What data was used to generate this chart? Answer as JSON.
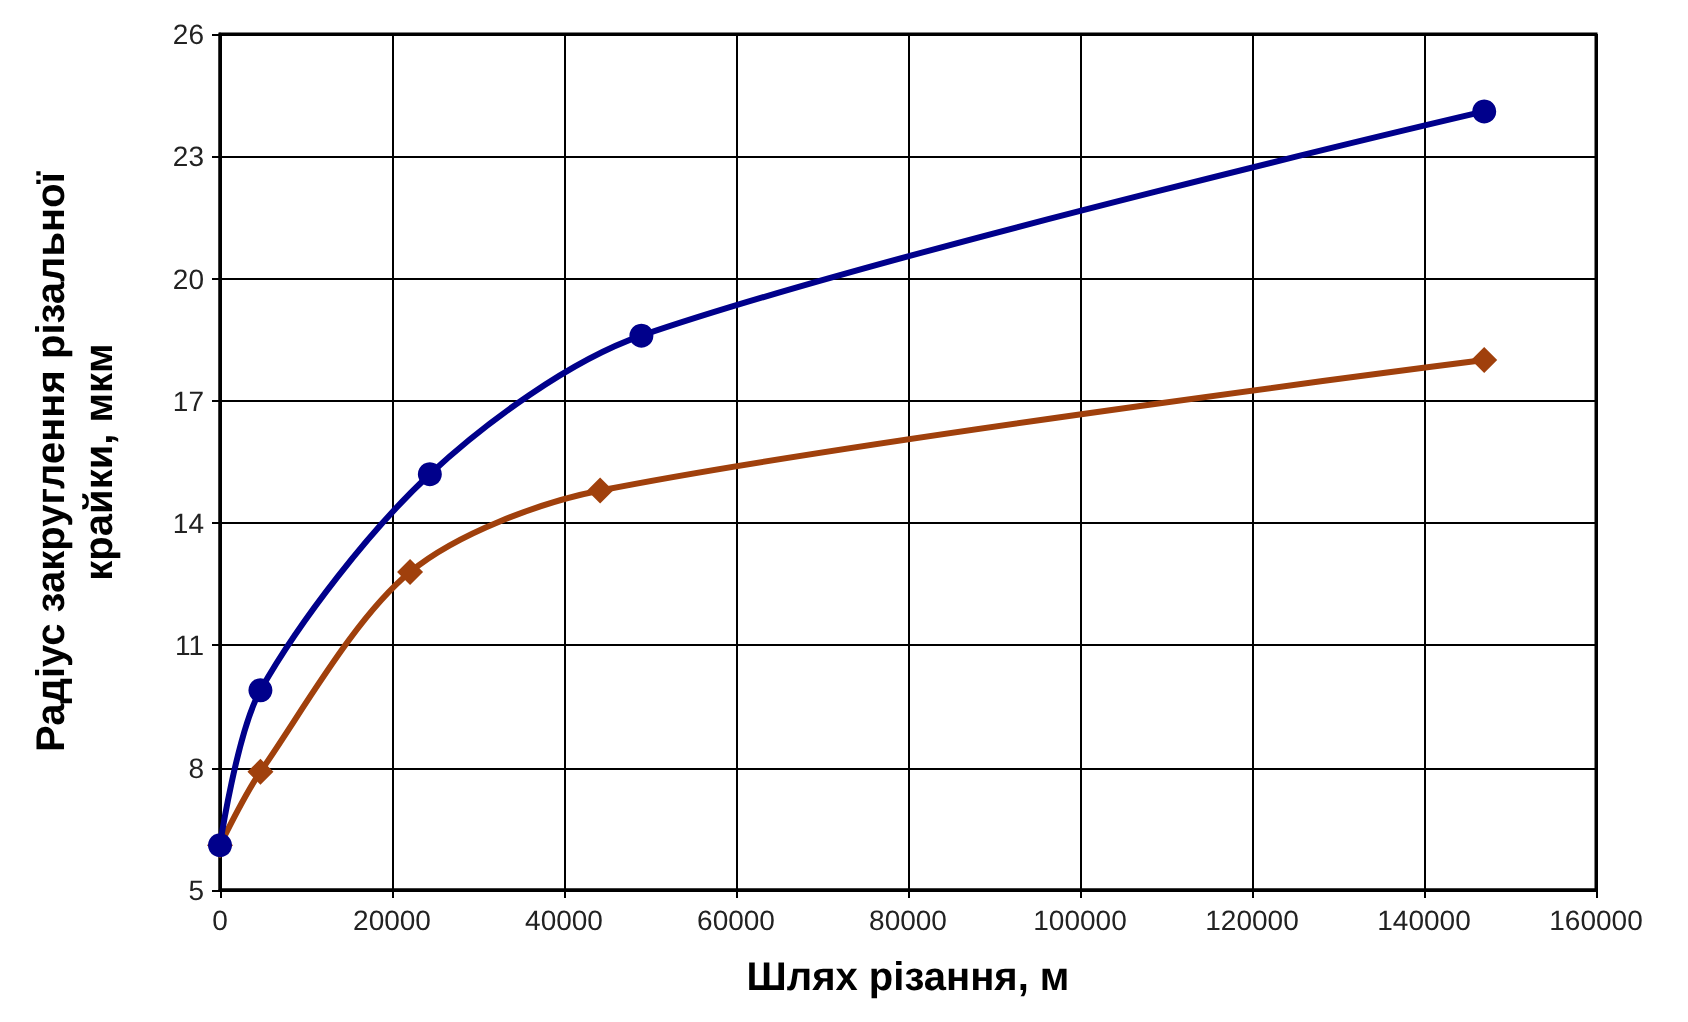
{
  "chart_data": {
    "type": "line",
    "xlabel": "Шлях різання, м",
    "ylabel": "Радіус закруглення різальної\nкрайки, мкм",
    "series": [
      {
        "color": "#00008b",
        "marker": "circle",
        "x": [
          0,
          4700,
          24400,
          49000,
          147000
        ],
        "values": [
          6.1,
          9.9,
          15.2,
          18.6,
          24.1
        ]
      },
      {
        "color": "#a0400c",
        "marker": "diamond",
        "x": [
          0,
          4700,
          22100,
          44200,
          147000
        ],
        "values": [
          6.1,
          7.9,
          12.8,
          14.8,
          18.0
        ]
      }
    ],
    "xlim": [
      0,
      160000
    ],
    "xticks": [
      0,
      20000,
      40000,
      60000,
      80000,
      100000,
      120000,
      140000,
      160000
    ],
    "ylim": [
      5,
      26
    ],
    "yticks": [
      5,
      8,
      11,
      14,
      17,
      20,
      23,
      26
    ],
    "grid": true,
    "line_style": "solid"
  }
}
